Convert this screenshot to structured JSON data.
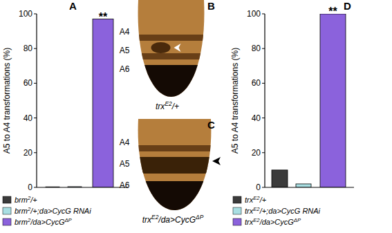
{
  "chart_data": [
    {
      "type": "bar",
      "title": "A",
      "y_label": "A5 to A4 transformations (%)",
      "categories": [
        "brm2/+",
        "brm2/+;da>CycG RNAi",
        "brm2/da>CycGΔP"
      ],
      "values": [
        0.3,
        0.4,
        97
      ],
      "colors": [
        "#3b3b3b",
        "#a9dfe3",
        "#8b62dc"
      ],
      "ylim": [
        0,
        100
      ],
      "yticks": [
        0,
        20,
        40,
        60,
        80,
        100
      ],
      "tick_labels": "y",
      "legend": "bottom",
      "annotations": [
        {
          "text": "**",
          "index": 2
        }
      ]
    },
    {
      "type": "bar",
      "title": "D",
      "y_label": "A5 to A4 transformations (%)",
      "categories": [
        "trxE2/+",
        "trxE2/+;da>CycG RNAi",
        "trxE2/da>CycGΔP"
      ],
      "values": [
        10,
        2,
        100
      ],
      "colors": [
        "#3b3b3b",
        "#a9dfe3",
        "#8b62dc"
      ],
      "ylim": [
        0,
        100
      ],
      "yticks": [
        0,
        20,
        40,
        60,
        80,
        100
      ],
      "tick_labels": "y",
      "legend": "bottom",
      "annotations": [
        {
          "text": "**",
          "index": 2
        }
      ]
    }
  ],
  "images": [
    {
      "title": "B",
      "segments": [
        "A4",
        "A5",
        "A6"
      ],
      "caption": "trxE2/+"
    },
    {
      "title": "C",
      "segments": [
        "A4",
        "A5",
        "A6"
      ],
      "caption": "trxE2/da>CycGΔP"
    }
  ]
}
